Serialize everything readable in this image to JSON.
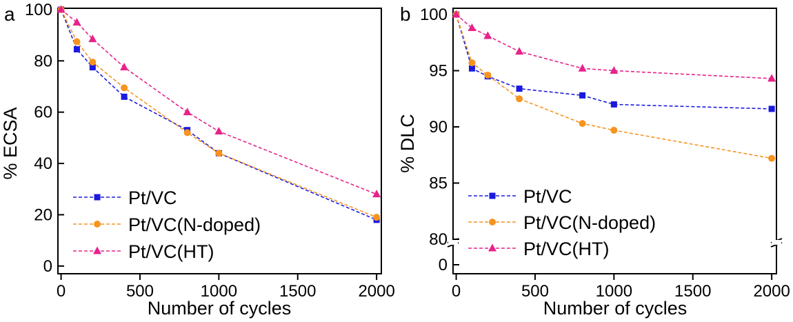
{
  "chart_data": [
    {
      "type": "line",
      "panel_label": "a",
      "title": "",
      "xlabel": "Number of  cycles",
      "ylabel": "%  ECSA",
      "x_ticks": [
        0,
        500,
        1000,
        1500,
        2000
      ],
      "x_tick_labels": [
        "0",
        "500",
        "1000",
        "1500",
        "2000"
      ],
      "y_ticks": [
        0,
        20,
        40,
        60,
        80,
        100
      ],
      "y_tick_labels": [
        "0",
        "20",
        "40",
        "60",
        "80",
        "100"
      ],
      "xlim": [
        -20,
        2030
      ],
      "ylim": [
        -3,
        100.5
      ],
      "legend_position": "bottom-left",
      "series": [
        {
          "name": "Pt/VC",
          "color": "#1a1adf",
          "marker": "square",
          "x": [
            0,
            100,
            200,
            400,
            800,
            1000,
            2000
          ],
          "y": [
            100,
            84.5,
            77.5,
            66,
            53,
            44,
            18
          ]
        },
        {
          "name": "Pt/VC(N-doped)",
          "color": "#f7931e",
          "marker": "circle",
          "x": [
            0,
            100,
            200,
            400,
            800,
            1000,
            2000
          ],
          "y": [
            100,
            87.5,
            79.5,
            69.5,
            52,
            44,
            19
          ]
        },
        {
          "name": "Pt/VC(HT)",
          "color": "#e8228a",
          "marker": "triangle",
          "x": [
            0,
            100,
            200,
            400,
            800,
            1000,
            2000
          ],
          "y": [
            100,
            95,
            88.5,
            77.5,
            60,
            52.5,
            28
          ]
        }
      ]
    },
    {
      "type": "line",
      "panel_label": "b",
      "title": "",
      "xlabel": "Number of  cycles",
      "ylabel": "%  DLC",
      "x_ticks": [
        0,
        500,
        1000,
        1500,
        2000
      ],
      "x_tick_labels": [
        "0",
        "500",
        "1000",
        "1500",
        "2000"
      ],
      "y_ticks": [
        0,
        80,
        85,
        90,
        95,
        100
      ],
      "y_tick_labels": [
        "0",
        "80",
        "85",
        "90",
        "95",
        "100"
      ],
      "y_axis_break": [
        0,
        80
      ],
      "xlim": [
        -20,
        2030
      ],
      "ylim_upper": [
        80,
        100
      ],
      "legend_position": "bottom-left",
      "series": [
        {
          "name": "Pt/VC",
          "color": "#1a1adf",
          "marker": "square",
          "x": [
            0,
            100,
            200,
            400,
            800,
            1000,
            2000
          ],
          "y": [
            100,
            95.2,
            94.5,
            93.4,
            92.8,
            92.0,
            91.6
          ]
        },
        {
          "name": "Pt/VC(N-doped)",
          "color": "#f7931e",
          "marker": "circle",
          "x": [
            0,
            100,
            200,
            400,
            800,
            1000,
            2000
          ],
          "y": [
            100,
            95.7,
            94.6,
            92.5,
            90.3,
            89.7,
            87.2
          ]
        },
        {
          "name": "Pt/VC(HT)",
          "color": "#e8228a",
          "marker": "triangle",
          "x": [
            0,
            100,
            200,
            400,
            800,
            1000,
            2000
          ],
          "y": [
            100,
            98.8,
            98.1,
            96.7,
            95.2,
            95.0,
            94.3
          ]
        }
      ]
    }
  ]
}
